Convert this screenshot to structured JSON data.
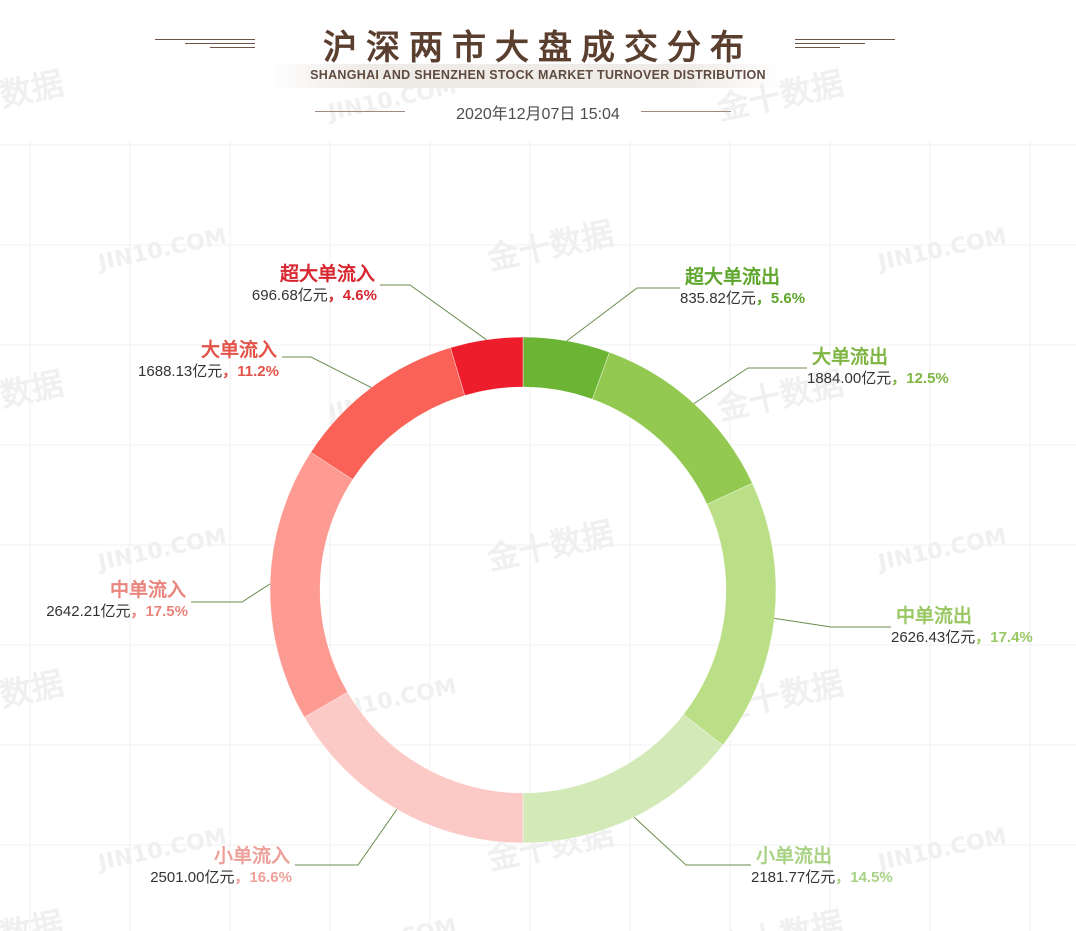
{
  "header": {
    "title": "沪深两市大盘成交分布",
    "subtitle": "SHANGHAI AND SHENZHEN STOCK MARKET TURNOVER DISTRIBUTION",
    "datetime": "2020年12月07日 15:04"
  },
  "watermarks": [
    "金十数据",
    "JIN10.COM"
  ],
  "unit": "亿元",
  "chart_data": {
    "type": "pie",
    "donut": true,
    "title": "沪深两市大盘成交分布",
    "legend": "none",
    "slices": [
      {
        "label": "超大单流出",
        "value": 835.82,
        "value_text": "835.82",
        "percent_text": "5.6%",
        "color": "#6bb434",
        "label_color": "#5fa62d"
      },
      {
        "label": "大单流出",
        "value": 1884.0,
        "value_text": "1884.00",
        "percent_text": "12.5%",
        "color": "#93c951",
        "label_color": "#7fb543"
      },
      {
        "label": "中单流出",
        "value": 2626.43,
        "value_text": "2626.43",
        "percent_text": "17.4%",
        "color": "#bbdf86",
        "label_color": "#99c763"
      },
      {
        "label": "小单流出",
        "value": 2181.77,
        "value_text": "2181.77",
        "percent_text": "14.5%",
        "color": "#d3eab8",
        "label_color": "#a9d285"
      },
      {
        "label": "小单流入",
        "value": 2501.0,
        "value_text": "2501.00",
        "percent_text": "16.6%",
        "color": "#fccac6",
        "label_color": "#eda09a"
      },
      {
        "label": "中单流入",
        "value": 2642.21,
        "value_text": "2642.21",
        "percent_text": "17.5%",
        "color": "#fd9a92",
        "label_color": "#e9857d"
      },
      {
        "label": "大单流入",
        "value": 1688.13,
        "value_text": "1688.13",
        "percent_text": "11.2%",
        "color": "#fb6257",
        "label_color": "#e35349"
      },
      {
        "label": "超大单流入",
        "value": 696.68,
        "value_text": "696.68",
        "percent_text": "4.6%",
        "color": "#ee1d2c",
        "label_color": "#d7262f"
      }
    ]
  }
}
